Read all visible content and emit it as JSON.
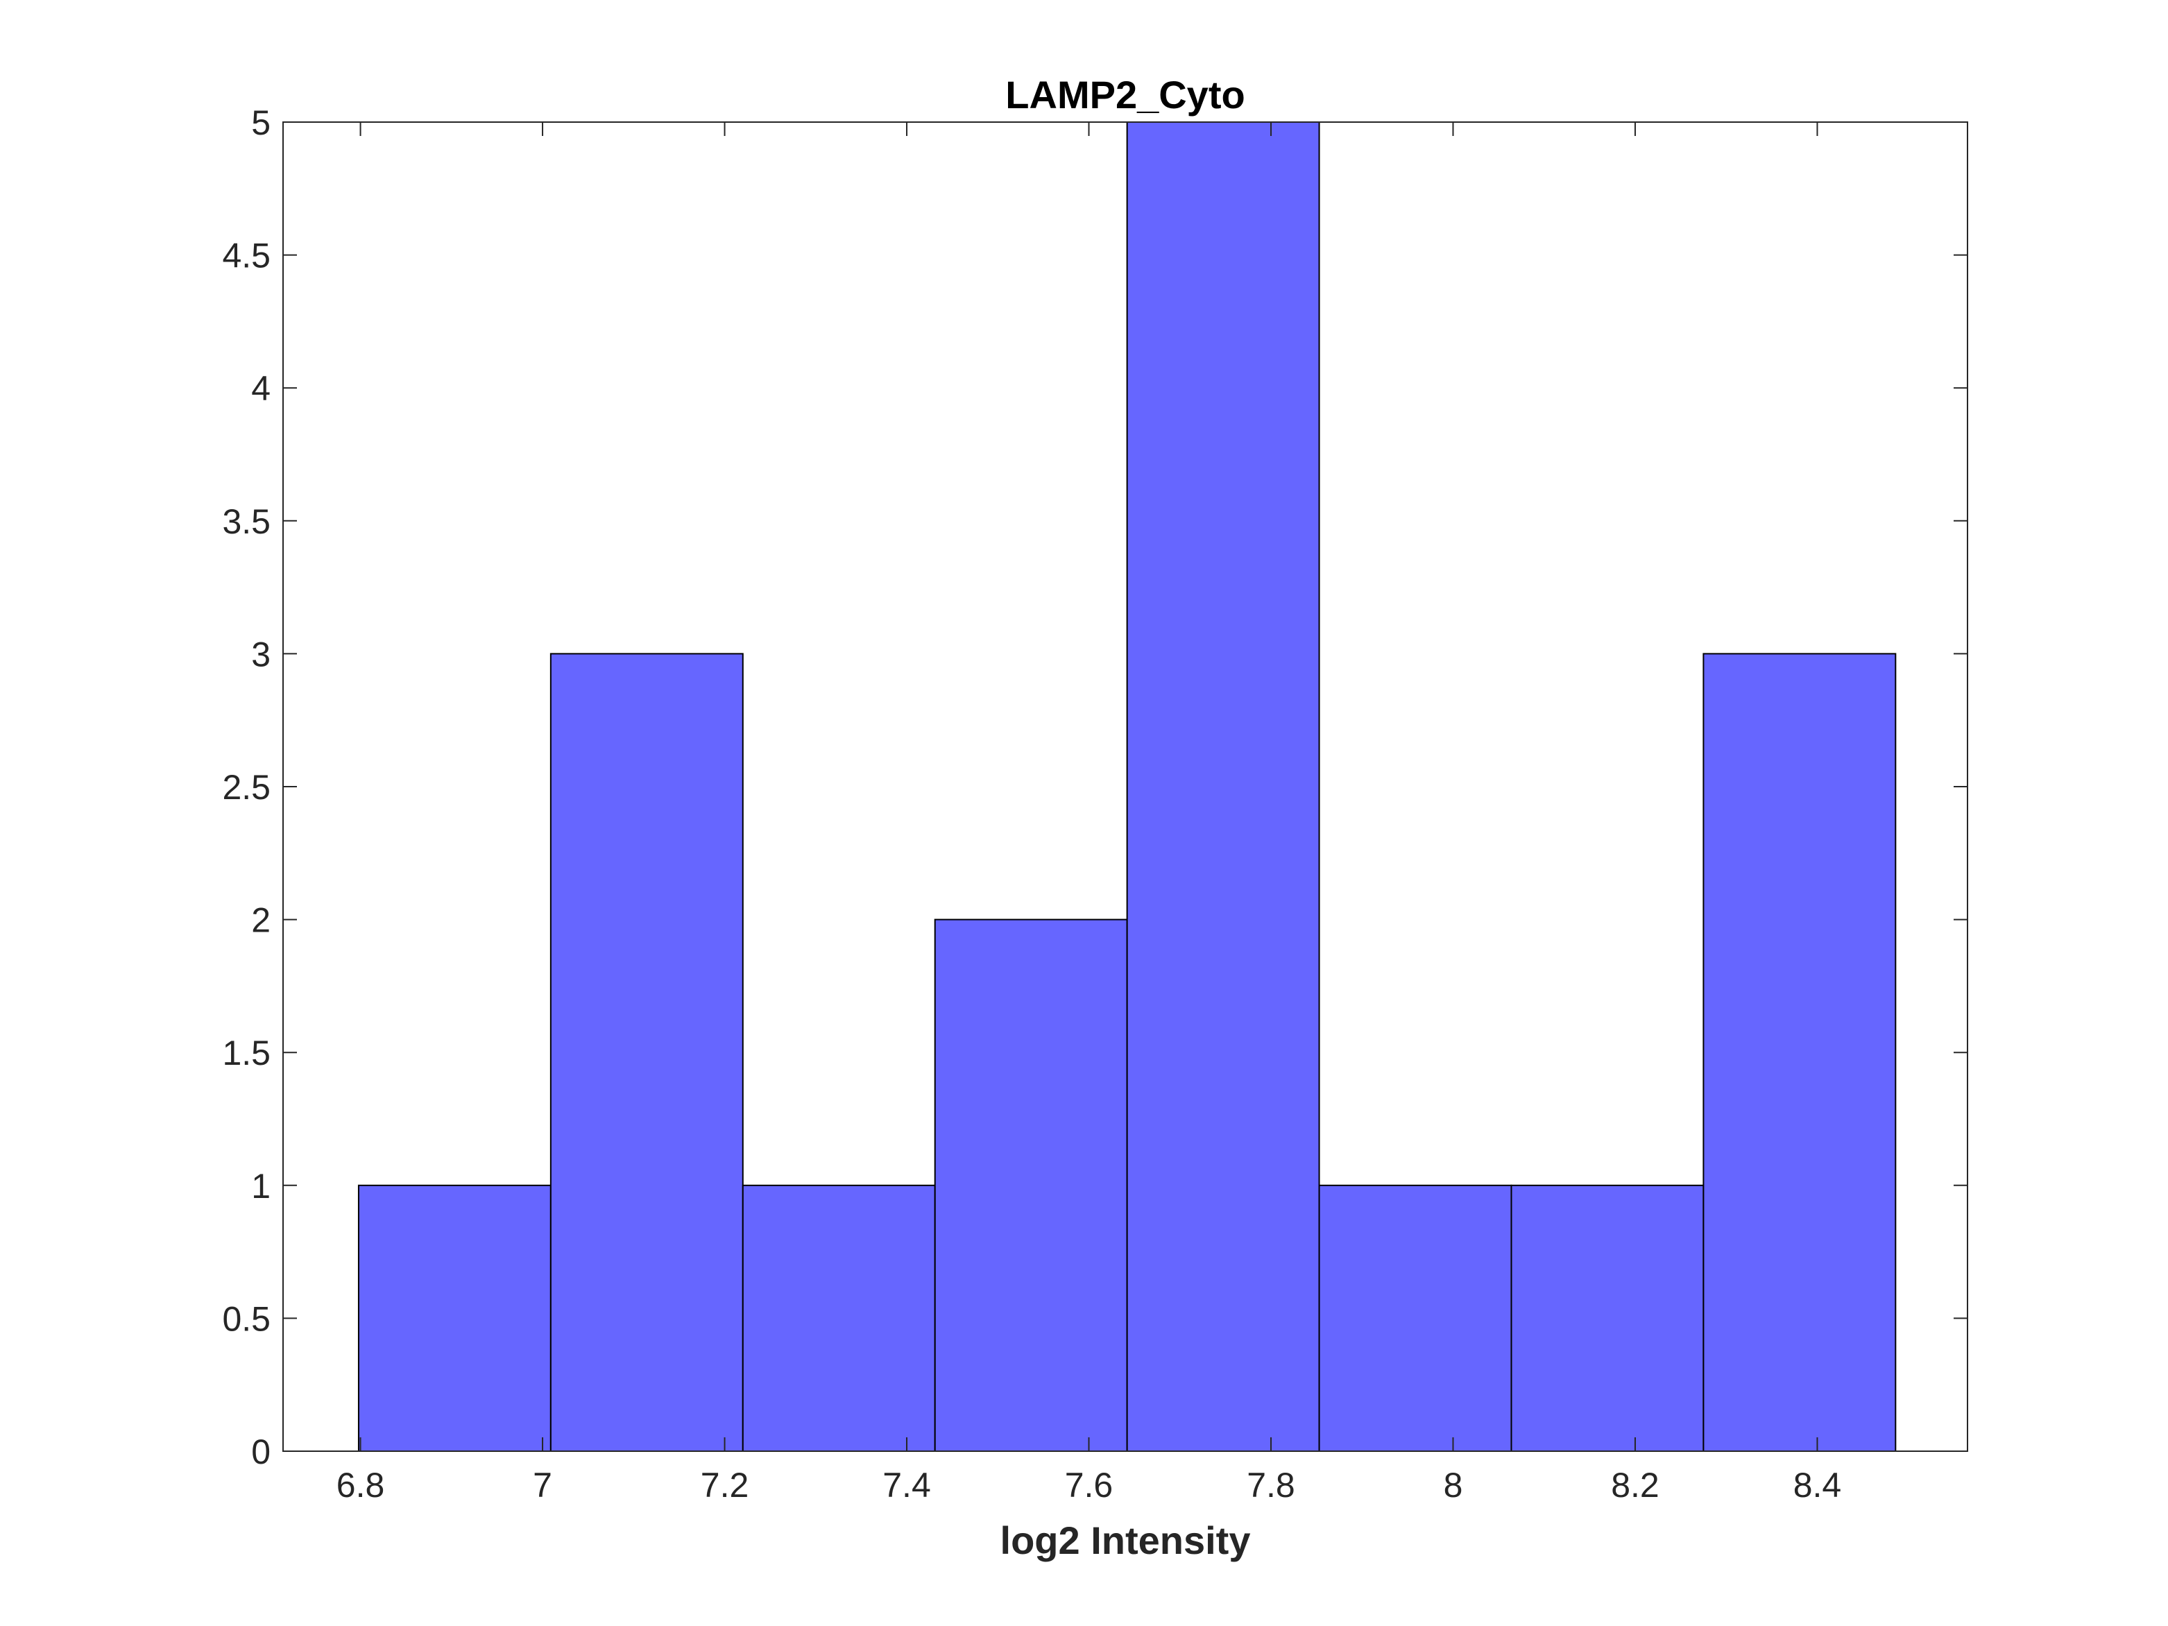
{
  "chart_data": {
    "type": "bar",
    "title": "LAMP2_Cyto",
    "xlabel": "log2 Intensity",
    "ylabel": "",
    "bin_edges": [
      6.798,
      7.009,
      7.22,
      7.431,
      7.642,
      7.853,
      8.064,
      8.275,
      8.486
    ],
    "values": [
      1,
      3,
      1,
      2,
      5,
      1,
      1,
      3
    ],
    "xlim": [
      6.715,
      8.565
    ],
    "ylim": [
      0,
      5
    ],
    "xticks": [
      6.8,
      7,
      7.2,
      7.4,
      7.6,
      7.8,
      8,
      8.2,
      8.4
    ],
    "xtick_labels": [
      "6.8",
      "7",
      "7.2",
      "7.4",
      "7.6",
      "7.8",
      "8",
      "8.2",
      "8.4"
    ],
    "yticks": [
      0,
      0.5,
      1,
      1.5,
      2,
      2.5,
      3,
      3.5,
      4,
      4.5,
      5
    ],
    "ytick_labels": [
      "0",
      "0.5",
      "1",
      "1.5",
      "2",
      "2.5",
      "3",
      "3.5",
      "4",
      "4.5",
      "5"
    ],
    "bar_color": "#6666ff",
    "grid": false,
    "legend": "none"
  }
}
